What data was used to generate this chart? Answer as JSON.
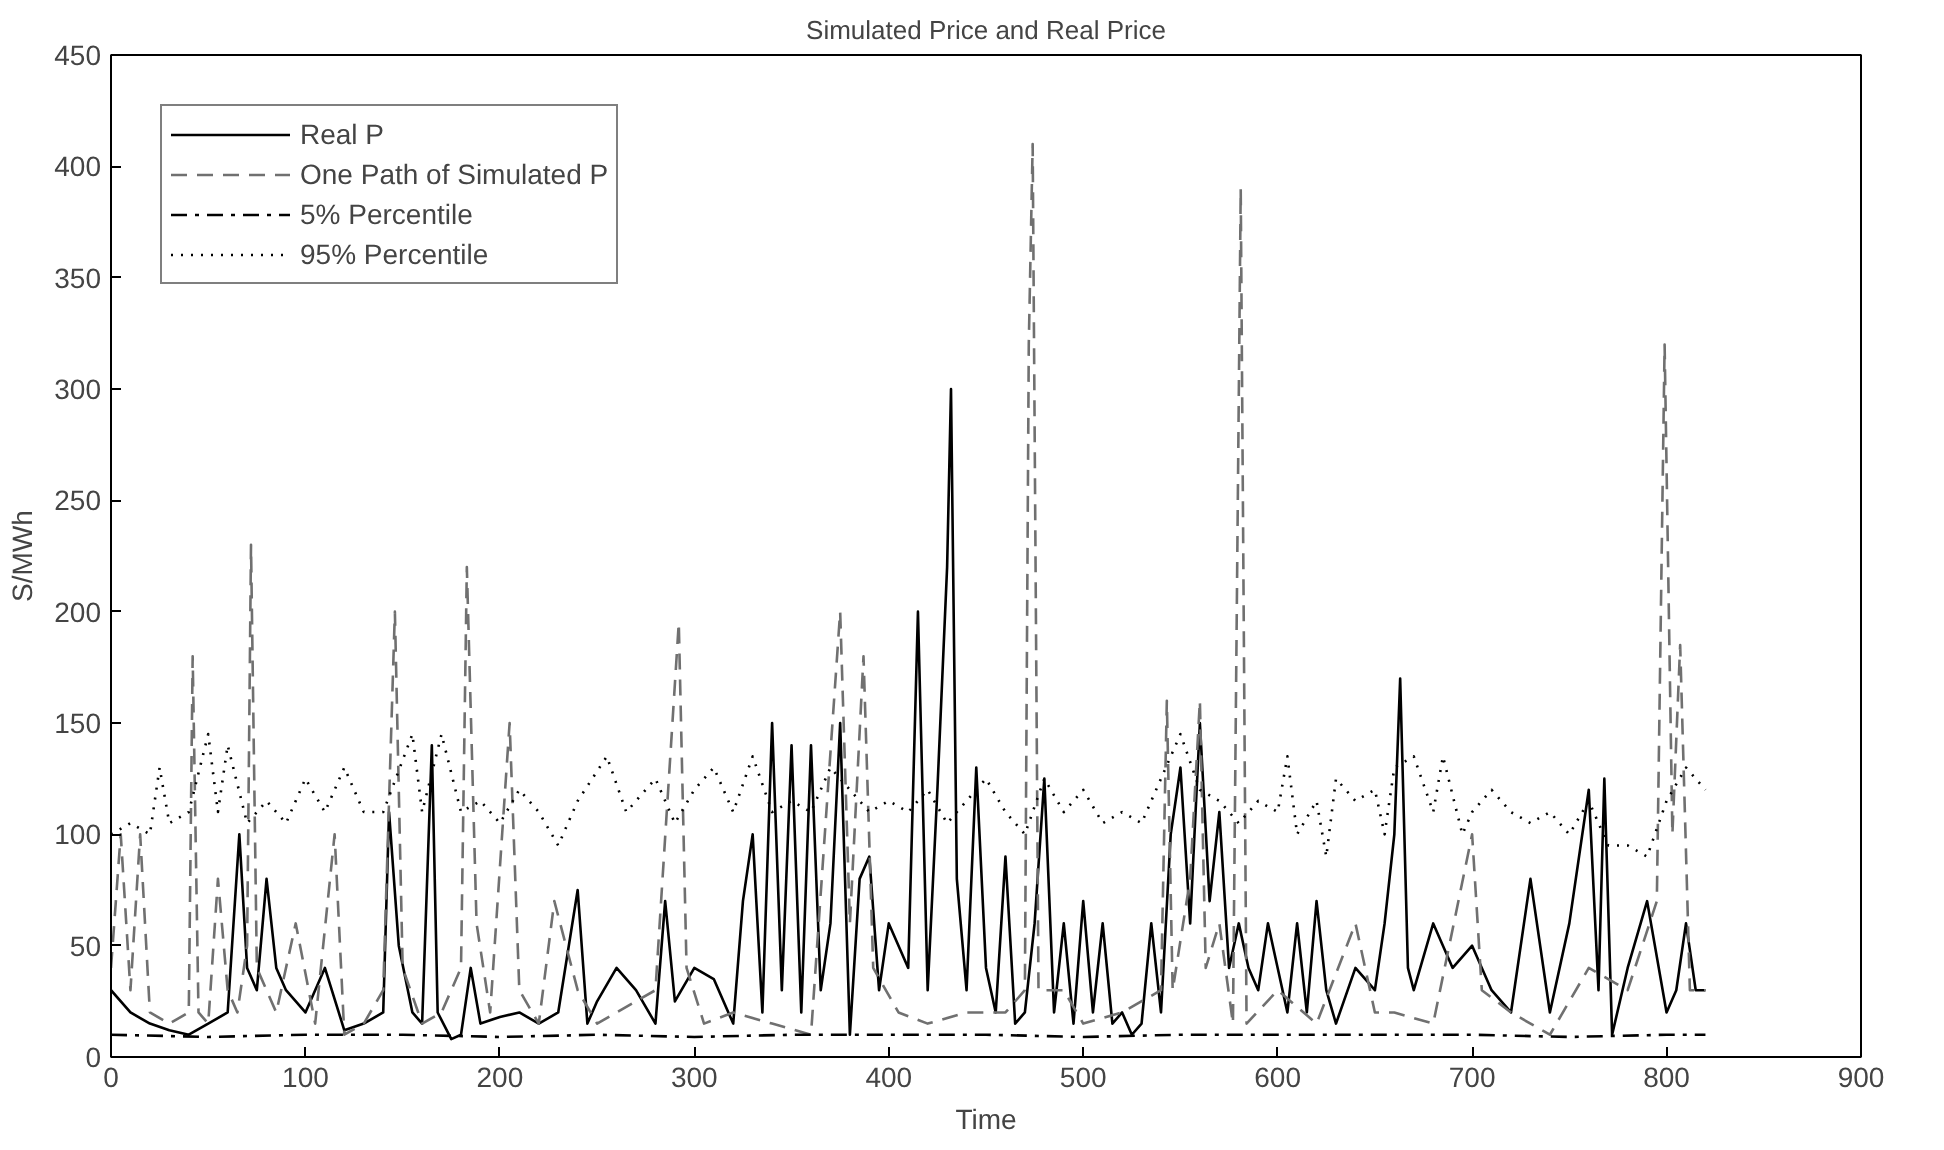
{
  "chart_data": {
    "type": "line",
    "title": "Simulated Price and Real Price",
    "xlabel": "Time",
    "ylabel": "S/MWh",
    "xlim": [
      0,
      900
    ],
    "xticks": [
      0,
      100,
      200,
      300,
      400,
      500,
      600,
      700,
      800,
      900
    ],
    "ylim": [
      0,
      450
    ],
    "yticks": [
      0,
      50,
      100,
      150,
      200,
      250,
      300,
      350,
      400,
      450
    ],
    "grid": false,
    "legend": "top left",
    "series": [
      {
        "name": "Real P",
        "color": "#000000",
        "line_style": "solid",
        "x": [
          0,
          10,
          20,
          30,
          40,
          50,
          60,
          66,
          70,
          75,
          80,
          85,
          90,
          100,
          110,
          120,
          130,
          140,
          143,
          148,
          155,
          160,
          165,
          168,
          175,
          180,
          185,
          190,
          200,
          210,
          220,
          230,
          240,
          245,
          250,
          260,
          270,
          280,
          285,
          290,
          300,
          310,
          320,
          325,
          330,
          335,
          340,
          345,
          350,
          355,
          360,
          365,
          370,
          375,
          380,
          385,
          390,
          395,
          400,
          410,
          415,
          420,
          425,
          430,
          432,
          435,
          440,
          445,
          450,
          455,
          460,
          465,
          470,
          475,
          480,
          485,
          490,
          495,
          500,
          505,
          510,
          515,
          520,
          525,
          530,
          535,
          540,
          545,
          550,
          555,
          560,
          565,
          570,
          575,
          580,
          585,
          590,
          595,
          600,
          605,
          610,
          615,
          620,
          625,
          630,
          640,
          650,
          655,
          660,
          663,
          667,
          670,
          680,
          690,
          700,
          710,
          720,
          730,
          740,
          750,
          760,
          765,
          768,
          772,
          780,
          790,
          800,
          805,
          810,
          815,
          820
        ],
        "values": [
          30,
          20,
          15,
          12,
          10,
          15,
          20,
          100,
          40,
          30,
          80,
          40,
          30,
          20,
          40,
          12,
          15,
          20,
          110,
          50,
          20,
          15,
          140,
          20,
          8,
          10,
          40,
          15,
          18,
          20,
          15,
          20,
          75,
          15,
          25,
          40,
          30,
          15,
          70,
          25,
          40,
          35,
          15,
          70,
          100,
          20,
          150,
          30,
          140,
          20,
          140,
          30,
          60,
          150,
          10,
          80,
          90,
          30,
          60,
          40,
          200,
          30,
          120,
          220,
          300,
          80,
          30,
          130,
          40,
          20,
          90,
          15,
          20,
          60,
          125,
          20,
          60,
          15,
          70,
          20,
          60,
          15,
          20,
          10,
          15,
          60,
          20,
          100,
          130,
          60,
          150,
          70,
          110,
          40,
          60,
          40,
          30,
          60,
          40,
          20,
          60,
          20,
          70,
          30,
          15,
          40,
          30,
          60,
          100,
          170,
          40,
          30,
          60,
          40,
          50,
          30,
          20,
          80,
          20,
          60,
          120,
          30,
          125,
          10,
          40,
          70,
          20,
          30,
          60,
          30,
          30
        ]
      },
      {
        "name": "One Path of Simulated P",
        "color": "#707070",
        "line_style": "dashed",
        "x": [
          0,
          5,
          10,
          15,
          20,
          30,
          40,
          42,
          45,
          50,
          55,
          60,
          65,
          70,
          72,
          75,
          85,
          95,
          105,
          115,
          120,
          130,
          140,
          146,
          150,
          160,
          170,
          180,
          183,
          188,
          195,
          205,
          210,
          220,
          228,
          240,
          250,
          260,
          280,
          292,
          296,
          305,
          320,
          340,
          360,
          375,
          380,
          387,
          392,
          405,
          420,
          440,
          460,
          470,
          472,
          474,
          477,
          490,
          500,
          520,
          540,
          543,
          546,
          555,
          560,
          563,
          570,
          577,
          581,
          584,
          600,
          620,
          640,
          650,
          660,
          680,
          700,
          705,
          720,
          740,
          760,
          780,
          795,
          799,
          803,
          807,
          812,
          820
        ],
        "values": [
          40,
          100,
          30,
          100,
          20,
          15,
          20,
          180,
          20,
          15,
          80,
          30,
          20,
          50,
          230,
          40,
          20,
          60,
          15,
          100,
          10,
          15,
          30,
          200,
          40,
          15,
          20,
          40,
          220,
          60,
          20,
          150,
          30,
          15,
          70,
          30,
          15,
          20,
          30,
          195,
          40,
          15,
          20,
          15,
          10,
          200,
          60,
          180,
          40,
          20,
          15,
          20,
          20,
          30,
          320,
          410,
          30,
          30,
          15,
          20,
          30,
          160,
          30,
          80,
          160,
          40,
          60,
          15,
          390,
          15,
          30,
          15,
          60,
          20,
          20,
          15,
          100,
          30,
          20,
          10,
          40,
          30,
          70,
          320,
          100,
          185,
          30,
          30
        ]
      },
      {
        "name": "5% Percentile",
        "color": "#000000",
        "line_style": "dashdot",
        "x": [
          0,
          50,
          100,
          150,
          200,
          250,
          300,
          350,
          400,
          450,
          500,
          550,
          600,
          650,
          700,
          750,
          800,
          820
        ],
        "values": [
          10,
          9,
          10,
          10,
          9,
          10,
          9,
          10,
          10,
          10,
          9,
          10,
          10,
          10,
          10,
          9,
          10,
          10
        ]
      },
      {
        "name": "95% Percentile",
        "color": "#000000",
        "line_style": "dotted",
        "x": [
          0,
          10,
          20,
          25,
          30,
          40,
          50,
          55,
          60,
          70,
          80,
          90,
          100,
          110,
          120,
          130,
          140,
          155,
          160,
          170,
          180,
          190,
          200,
          210,
          220,
          230,
          240,
          255,
          265,
          280,
          290,
          300,
          310,
          320,
          330,
          340,
          350,
          360,
          370,
          380,
          390,
          400,
          410,
          420,
          430,
          440,
          450,
          460,
          470,
          480,
          490,
          500,
          510,
          520,
          530,
          540,
          550,
          560,
          570,
          580,
          590,
          600,
          605,
          610,
          620,
          625,
          630,
          640,
          650,
          655,
          660,
          670,
          680,
          685,
          695,
          700,
          710,
          720,
          730,
          740,
          750,
          760,
          770,
          780,
          790,
          800,
          810,
          820
        ],
        "values": [
          100,
          105,
          100,
          130,
          105,
          110,
          145,
          110,
          140,
          105,
          115,
          105,
          125,
          110,
          130,
          110,
          110,
          145,
          110,
          145,
          110,
          115,
          105,
          120,
          110,
          95,
          115,
          135,
          110,
          125,
          105,
          120,
          130,
          110,
          135,
          110,
          115,
          110,
          130,
          120,
          110,
          115,
          110,
          120,
          105,
          115,
          125,
          110,
          100,
          125,
          110,
          120,
          105,
          110,
          105,
          125,
          145,
          120,
          115,
          105,
          115,
          110,
          135,
          100,
          115,
          90,
          125,
          115,
          120,
          100,
          130,
          135,
          110,
          135,
          100,
          110,
          120,
          110,
          105,
          110,
          100,
          115,
          95,
          95,
          90,
          115,
          130,
          120
        ]
      }
    ]
  }
}
